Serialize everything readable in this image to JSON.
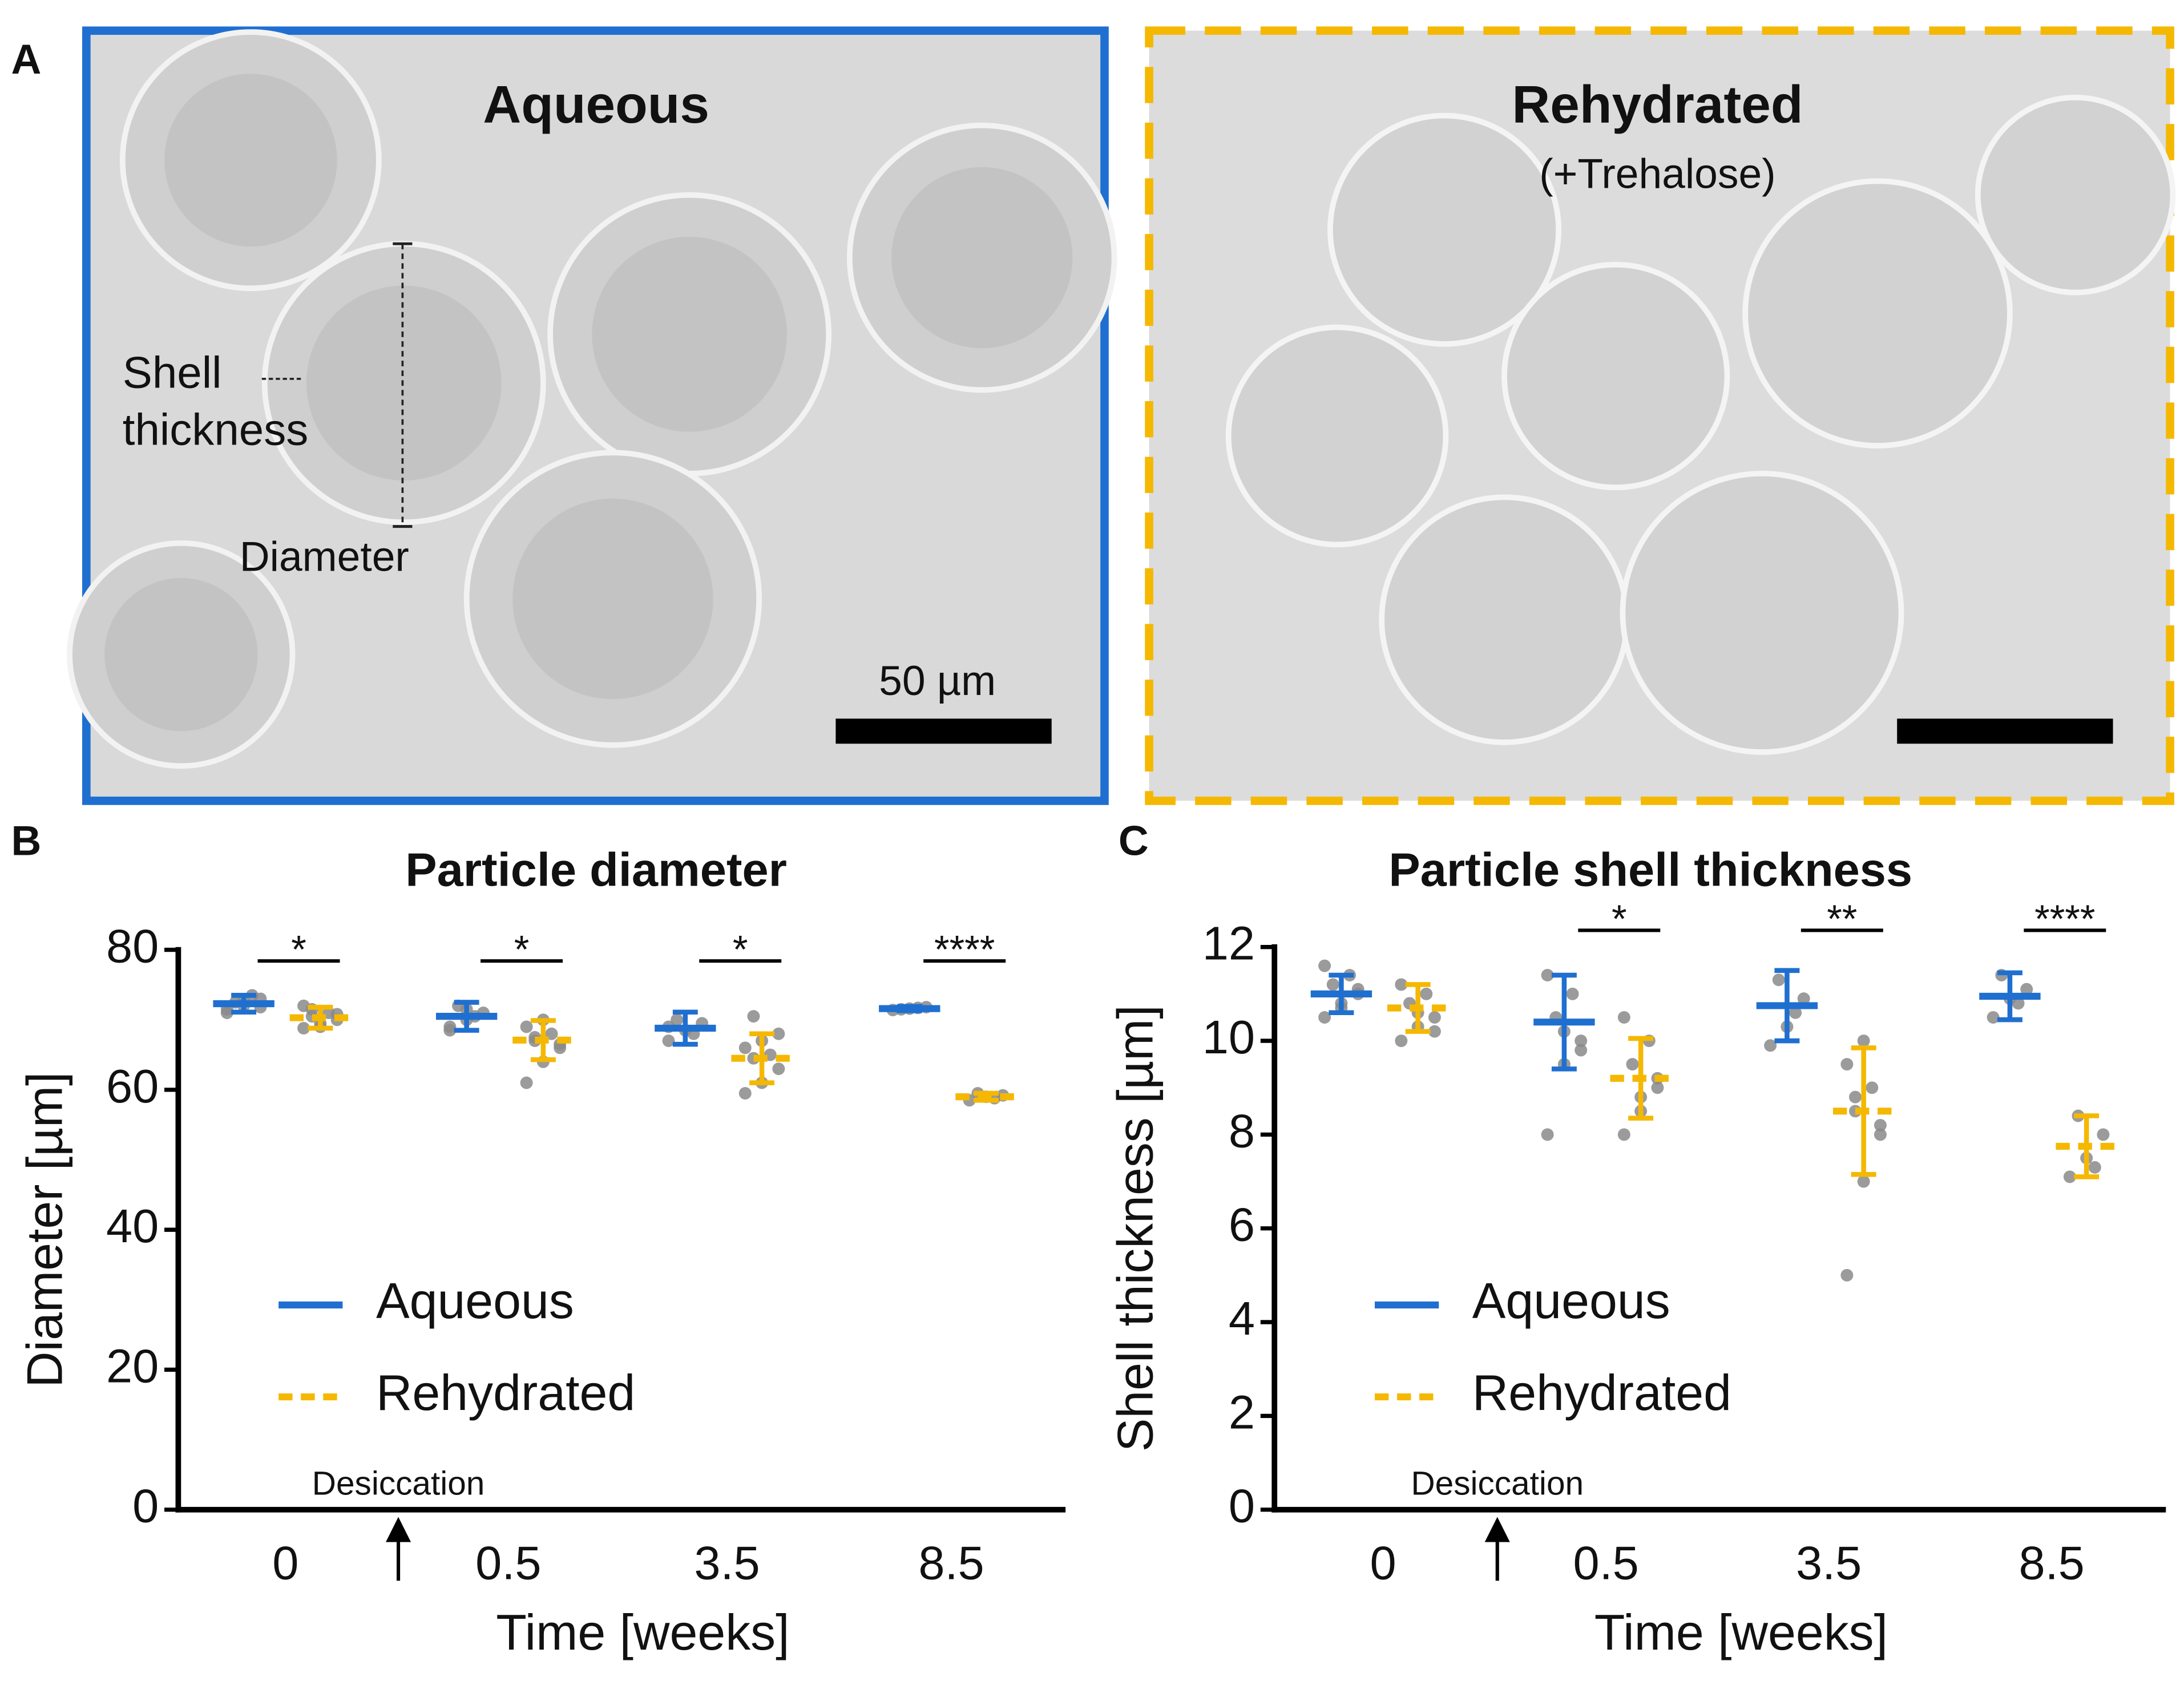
{
  "panel_a": {
    "label": "A",
    "left_title": "Aqueous",
    "right_title": "Rehydrated",
    "right_subtitle": "(+Trehalose)",
    "shell_label_1": "Shell",
    "shell_label_2": "thickness",
    "diameter_label": "Diameter",
    "scale_bar": "50 µm"
  },
  "chart_data": [
    {
      "type": "dotplot",
      "panel_label": "B",
      "title": "Particle diameter",
      "x_label": "Time [weeks]",
      "y_label": "Diameter [µm]",
      "categories": [
        "0",
        "0.5",
        "3.5",
        "8.5"
      ],
      "ylim": [
        0,
        80
      ],
      "yticks": [
        0,
        20,
        40,
        60,
        80
      ],
      "annotation": "Desiccation",
      "significance": [
        "*",
        "*",
        "*",
        "****"
      ],
      "legend": "center-left",
      "point_color": "#8a8a8a",
      "series": [
        {
          "name": "Aqueous",
          "color": "#1f6fd0",
          "line_style": "solid",
          "values": [
            72.3,
            70.5,
            68.8,
            71.6
          ],
          "errors": [
            1.2,
            2.0,
            2.3,
            0.3
          ],
          "points": [
            [
              71,
              72,
              73,
              72.5,
              73.5,
              71.5,
              72.8,
              71.8
            ],
            [
              69,
              70,
              71,
              72,
              70.5,
              68.5,
              71.5
            ],
            [
              67,
              68.5,
              69.5,
              70,
              68,
              69
            ],
            [
              71.4,
              71.6,
              71.8,
              71.5,
              71.7
            ]
          ]
        },
        {
          "name": "Rehydrated",
          "color": "#f5b800",
          "line_style": "dashed",
          "values": [
            70.3,
            67.1,
            64.5,
            59.0
          ],
          "errors": [
            1.5,
            2.8,
            3.5,
            0.5
          ],
          "points": [
            [
              68.8,
              69.5,
              70,
              70.5,
              71,
              72,
              69,
              70.8,
              71.5
            ],
            [
              61,
              64,
              66,
              67,
              68,
              69,
              70,
              66.5,
              67.5
            ],
            [
              59.5,
              61,
              63,
              64.5,
              65,
              66,
              67,
              68,
              70.5
            ],
            [
              58.5,
              59,
              59.2,
              59.5,
              58.8
            ]
          ]
        }
      ]
    },
    {
      "type": "dotplot",
      "panel_label": "C",
      "title": "Particle shell thickness",
      "x_label": "Time [weeks]",
      "y_label": "Shell thickness [µm]",
      "categories": [
        "0",
        "0.5",
        "3.5",
        "8.5"
      ],
      "ylim": [
        0,
        12
      ],
      "yticks": [
        0,
        2,
        4,
        6,
        8,
        10,
        12
      ],
      "annotation": "Desiccation",
      "significance": [
        null,
        "*",
        "**",
        "****"
      ],
      "legend": "center-left",
      "point_color": "#8a8a8a",
      "series": [
        {
          "name": "Aqueous",
          "color": "#1f6fd0",
          "line_style": "solid",
          "values": [
            11.0,
            10.4,
            10.75,
            10.95
          ],
          "errors": [
            0.4,
            1.0,
            0.75,
            0.5
          ],
          "points": [
            [
              10.5,
              10.8,
              11,
              11.2,
              11.4,
              11.6,
              10.7,
              11.1
            ],
            [
              8,
              9.5,
              10,
              10.5,
              11,
              11.4,
              10.2,
              9.8
            ],
            [
              9.9,
              10.3,
              10.9,
              11.3,
              10.6
            ],
            [
              10.5,
              10.9,
              11.1,
              11.4,
              10.8
            ]
          ]
        },
        {
          "name": "Rehydrated",
          "color": "#f5b800",
          "line_style": "dashed",
          "values": [
            10.7,
            9.2,
            8.5,
            7.75
          ],
          "errors": [
            0.5,
            0.85,
            1.35,
            0.65
          ],
          "points": [
            [
              10,
              10.3,
              10.5,
              10.8,
              11,
              11.2,
              10.6,
              10.2
            ],
            [
              8,
              8.5,
              9,
              9.5,
              10,
              10.5,
              8.8,
              9.2
            ],
            [
              5,
              7,
              8,
              8.5,
              9,
              9.5,
              10,
              8.2,
              8.8
            ],
            [
              7.1,
              7.5,
              8,
              8.4,
              7.3
            ]
          ]
        }
      ]
    }
  ]
}
